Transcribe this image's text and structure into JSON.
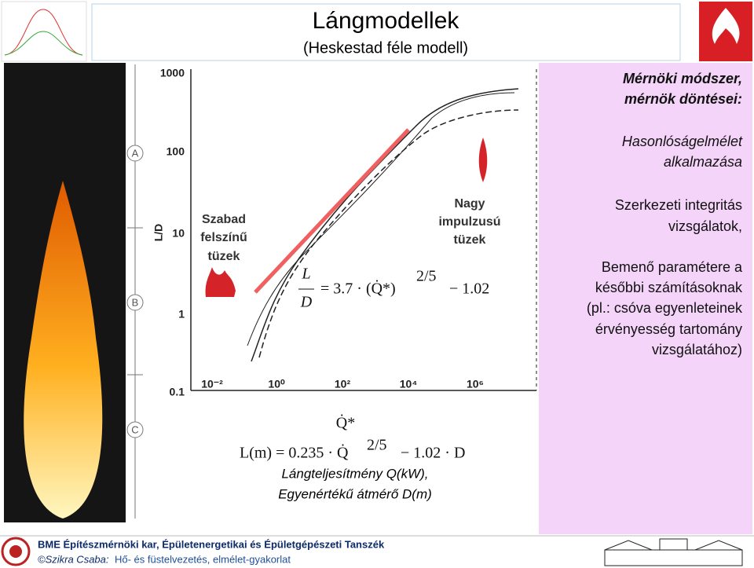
{
  "header": {
    "title": "Lángmodellek",
    "subtitle": "(Heskestad féle modell)"
  },
  "zones": [
    "A",
    "B",
    "C"
  ],
  "figure": {
    "y_label": "L/D",
    "y_tick_labels": [
      "1000",
      "100",
      "10",
      "1",
      "0.1"
    ],
    "x_tick_labels": [
      "10⁻²",
      "10⁰",
      "10²",
      "10⁴",
      "10⁶"
    ],
    "x_label": "Q̇*",
    "annotation_left": [
      "Szabad",
      "felszínű",
      "tüzek"
    ],
    "annotation_right": [
      "Nagy",
      "impulzusú",
      "tüzek"
    ],
    "formula": {
      "numerator": "L",
      "denominator": "D",
      "body": "= 3.7 · (Q̇*)",
      "exponent": "2/5",
      "tail": "− 1.02"
    }
  },
  "formula2": {
    "body": "L(m) = 0.235 · Q̇",
    "exponent": "2/5",
    "tail": "− 1.02 · D"
  },
  "legend_lines": [
    "Lángteljesítmény Q(kW),",
    "Egyenértékű átmérő D(m)"
  ],
  "side_panel": {
    "heading": [
      "Mérnöki módszer,",
      "mérnök döntései:"
    ],
    "method": [
      "Hasonlóságelmélet",
      "alkalmazása"
    ],
    "lines1": [
      "Szerkezeti integritás",
      "vizsgálatok,"
    ],
    "lines2": [
      "Bemenő paramétere a",
      "későbbi számításoknak",
      "(pl.: csóva egyenleteinek",
      "érvényesség tartomány",
      "vizsgálatához)"
    ]
  },
  "footer": {
    "institution": "BME Építészmérnöki kar, Épületenergetikai és Épületgépészeti Tanszék",
    "author": "©Szikra Csaba:",
    "course": "Hő- és füstelvezetés, elmélet-gyakorlat"
  }
}
